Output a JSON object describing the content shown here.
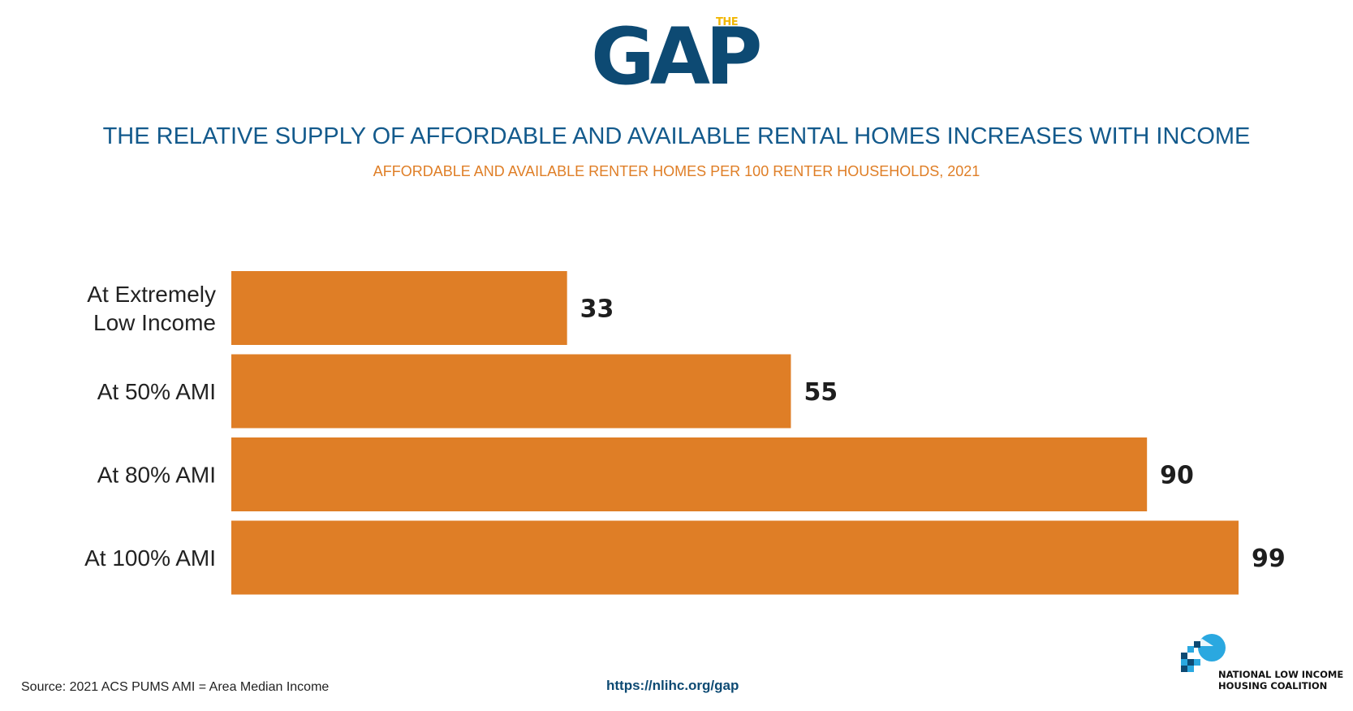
{
  "logo": {
    "main": "GAP",
    "small": "THE",
    "colors": {
      "main": "#0d4a73",
      "accent": "#f2b705"
    }
  },
  "header": {
    "title": "THE RELATIVE SUPPLY OF AFFORDABLE AND AVAILABLE RENTAL HOMES INCREASES WITH INCOME",
    "subtitle": "AFFORDABLE AND AVAILABLE RENTER HOMES PER 100 RENTER HOUSEHOLDS, 2021"
  },
  "chart_data": {
    "type": "bar",
    "orientation": "horizontal",
    "title": "THE RELATIVE SUPPLY OF AFFORDABLE AND AVAILABLE RENTAL HOMES INCREASES WITH INCOME",
    "subtitle": "AFFORDABLE AND AVAILABLE RENTER HOMES PER 100 RENTER HOUSEHOLDS, 2021",
    "categories": [
      [
        "At Extremely",
        "Low Income"
      ],
      [
        "At 50% AMI"
      ],
      [
        "At 80% AMI"
      ],
      [
        "At 100% AMI"
      ]
    ],
    "values": [
      33,
      55,
      90,
      99
    ],
    "data_labels": [
      "33",
      "55",
      "90",
      "99"
    ],
    "xlim": [
      0,
      100
    ],
    "grid": false,
    "axis_visible": false,
    "bar_color": "#df7e26"
  },
  "footer": {
    "source": "Source: 2021 ACS PUMS AMI = Area Median Income",
    "url": "https://nlihc.org/gap",
    "org_line1": "NATIONAL LOW INCOME",
    "org_line2": "HOUSING COALITION",
    "colors": {
      "org_dark": "#0d4a73",
      "org_light": "#2aa8e0"
    }
  }
}
